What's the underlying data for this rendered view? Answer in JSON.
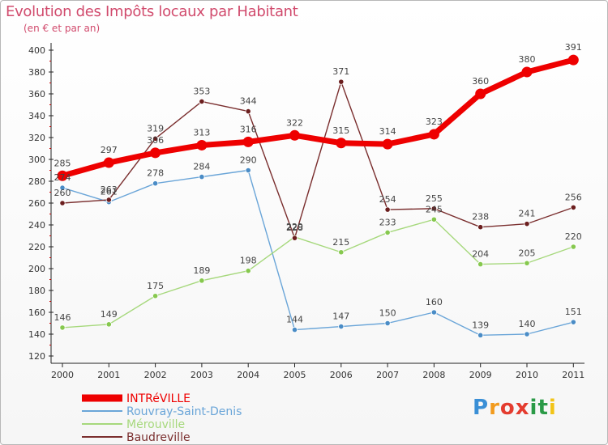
{
  "header": {
    "title": "Evolution des Impôts locaux par Habitant",
    "subtitle": "(en € et par an)"
  },
  "brand": {
    "letters": [
      "P",
      "r",
      "o",
      "x",
      "i",
      "t",
      "i"
    ],
    "colors": [
      "#3a8fd6",
      "#f29b1d",
      "#e43c2f",
      "#e43c2f",
      "#2b9a47",
      "#2b9a47",
      "#f2c417"
    ]
  },
  "chart_data": {
    "type": "line",
    "categories": [
      "2000",
      "2001",
      "2002",
      "2003",
      "2004",
      "2005",
      "2006",
      "2007",
      "2008",
      "2009",
      "2010",
      "2011"
    ],
    "ylim": [
      120,
      400
    ],
    "yticks": [
      "120",
      "140",
      "160",
      "180",
      "200",
      "220",
      "240",
      "260",
      "280",
      "300",
      "320",
      "340",
      "360",
      "380",
      "400"
    ],
    "grid": false,
    "legend_position": "bottom-left",
    "series": [
      {
        "name": "Rouvray-Saint-Denis",
        "color": "#6aa5d8",
        "point_color": "#4a8cc6",
        "values": [
          274,
          261,
          278,
          284,
          290,
          144,
          147,
          150,
          160,
          139,
          140,
          151
        ]
      },
      {
        "name": "Mérouville",
        "color": "#a6d87c",
        "point_color": "#86c84e",
        "values": [
          146,
          149,
          175,
          189,
          198,
          229,
          215,
          233,
          245,
          204,
          205,
          220
        ]
      },
      {
        "name": "Baudreville",
        "color": "#7a2e2e",
        "point_color": "#6b1e1e",
        "values": [
          260,
          263,
          319,
          353,
          344,
          228,
          371,
          254,
          255,
          238,
          241,
          256
        ]
      },
      {
        "name": "INTRéVILLE",
        "color": "#ee0000",
        "point_color": "#ee0000",
        "values": [
          285,
          297,
          306,
          313,
          316,
          322,
          315,
          314,
          323,
          360,
          380,
          391
        ]
      }
    ],
    "data_labels": [
      [
        "274",
        "261",
        "278",
        "284",
        "290",
        "144",
        "147",
        "150",
        "160",
        "139",
        "140",
        "151"
      ],
      [
        "146",
        "149",
        "175",
        "189",
        "198",
        "229",
        "215",
        "233",
        "245",
        "204",
        "205",
        "220"
      ],
      [
        "260",
        "263",
        "319",
        "353",
        "344",
        "228",
        "371",
        "254",
        "255",
        "238",
        "241",
        "256"
      ],
      [
        "285",
        "297",
        "306",
        "313",
        "316",
        "322",
        "315",
        "314",
        "323",
        "360",
        "380",
        "391"
      ]
    ],
    "legend": [
      "INTRéVILLE",
      "Rouvray-Saint-Denis",
      "Mérouville",
      "Baudreville"
    ]
  }
}
